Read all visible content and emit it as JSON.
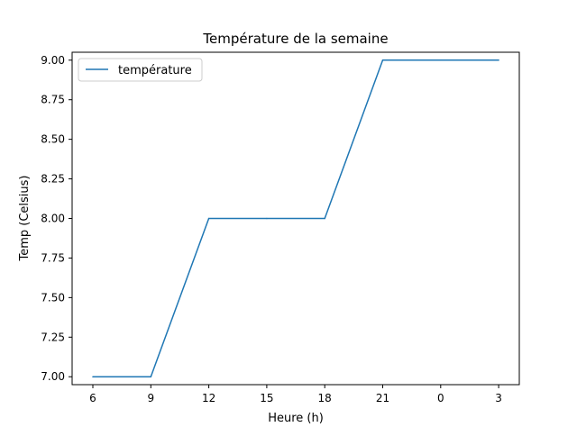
{
  "chart_data": {
    "type": "line",
    "title": "Température de la semaine",
    "xlabel": "Heure (h)",
    "ylabel": "Temp (Celsius)",
    "categories": [
      "6",
      "9",
      "12",
      "15",
      "18",
      "21",
      "0",
      "3"
    ],
    "series": [
      {
        "name": "température",
        "values": [
          7,
          7,
          8,
          8,
          8,
          9,
          9,
          9
        ],
        "color": "#1f77b4"
      }
    ],
    "ylim": [
      6.95,
      9.05
    ],
    "yticks": [
      7.0,
      7.25,
      7.5,
      7.75,
      8.0,
      8.25,
      8.5,
      8.75,
      9.0
    ],
    "ytick_labels": [
      "7.00",
      "7.25",
      "7.50",
      "7.75",
      "8.00",
      "8.25",
      "8.50",
      "8.75",
      "9.00"
    ],
    "grid": false,
    "legend_position": "upper left"
  }
}
